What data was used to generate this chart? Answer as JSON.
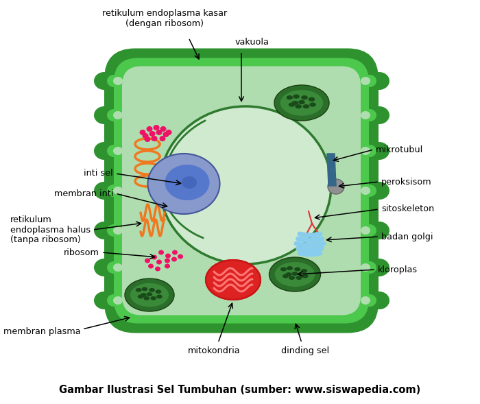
{
  "title": "Gambar Ilustrasi Sel Tumbuhan (sumber: www.siswapedia.com)",
  "bg_color": "#ffffff",
  "cell_wall_color": "#2e922e",
  "cell_membrane_color": "#4cc84c",
  "cytoplasm_color": "#b0ddb0",
  "nucleus_outer_color": "#8899cc",
  "nucleus_inner_color": "#5577cc",
  "nucleus_dark_color": "#4466bb",
  "vacuole_color": "#d0ead0",
  "vacuole_border_color": "#2e7a2e",
  "chloroplast_dark_color": "#2a6e2a",
  "chloroplast_mid_color": "#3a8a3a",
  "chloroplast_dot_color": "#1a4a1a",
  "mitochondria_color": "#dd2222",
  "mitochondria_inner_color": "#ff7777",
  "ribosome_color": "#ee1166",
  "er_color": "#f07820",
  "golgi_color": "#88ccee",
  "peroxisome_color": "#909090",
  "sitoskeleton_color": "#dd3333",
  "mikrotubul_color": "#336688",
  "vacuole_line_color": "#2e7a2e",
  "labels": {
    "retikulum_endoplasma_kasar": "retikulum endoplasma kasar\n(dengan ribosom)",
    "vakuola": "vakuola",
    "mikrotubul": "mikrotubul",
    "inti_sel": "inti sel",
    "membran_inti": "membran inti",
    "peroksisom": "peroksisom",
    "sitoskeleton": "sitoskeleton",
    "badan_golgi": "badan golgi",
    "retikulum_endoplasma_halus": "retikulum\nendoplasma halus\n(tanpa ribosom)",
    "ribosom": "ribosom",
    "kloroplas": "kloroplas",
    "membran_plasma": "membran plasma",
    "mitokondria": "mitokondria",
    "dinding_sel": "dinding sel"
  },
  "figsize": [
    7.0,
    5.89
  ],
  "dpi": 100
}
